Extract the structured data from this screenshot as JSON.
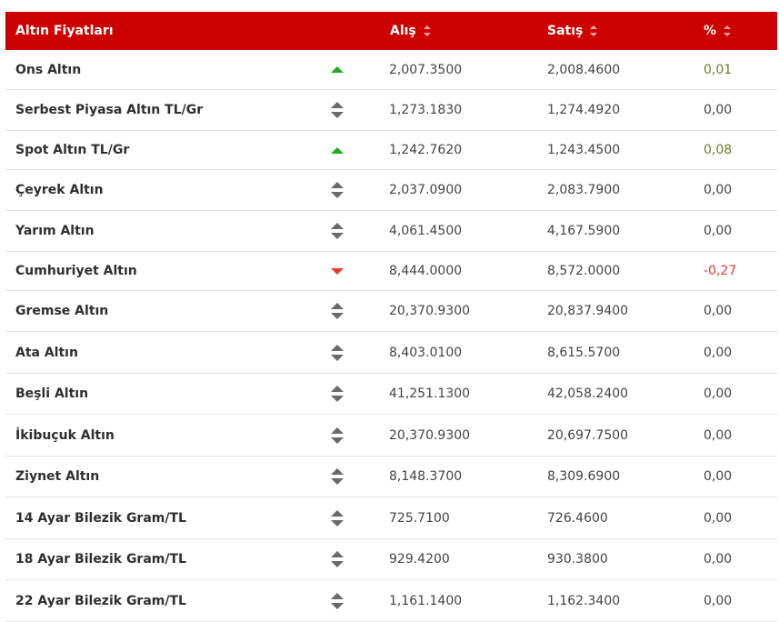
{
  "header": {
    "title": "Altın Fiyatları",
    "buy_label": "Alış",
    "sell_label": "Satış",
    "pct_label": "%"
  },
  "colors": {
    "accent": "#cc0000",
    "up": "#1fae1f",
    "down": "#e53935"
  },
  "rows": [
    {
      "name": "Ons Altın",
      "trend": "up",
      "buy": "2,007.3500",
      "sell": "2,008.4600",
      "pct": "0,01"
    },
    {
      "name": "Serbest Piyasa Altın TL/Gr",
      "trend": "flat",
      "buy": "1,273.1830",
      "sell": "1,274.4920",
      "pct": "0,00"
    },
    {
      "name": "Spot Altın TL/Gr",
      "trend": "up",
      "buy": "1,242.7620",
      "sell": "1,243.4500",
      "pct": "0,08"
    },
    {
      "name": "Çeyrek Altın",
      "trend": "flat",
      "buy": "2,037.0900",
      "sell": "2,083.7900",
      "pct": "0,00"
    },
    {
      "name": "Yarım Altın",
      "trend": "flat",
      "buy": "4,061.4500",
      "sell": "4,167.5900",
      "pct": "0,00"
    },
    {
      "name": "Cumhuriyet Altın",
      "trend": "down",
      "buy": "8,444.0000",
      "sell": "8,572.0000",
      "pct": "-0,27"
    },
    {
      "name": "Gremse Altın",
      "trend": "flat",
      "buy": "20,370.9300",
      "sell": "20,837.9400",
      "pct": "0,00"
    },
    {
      "name": "Ata Altın",
      "trend": "flat",
      "buy": "8,403.0100",
      "sell": "8,615.5700",
      "pct": "0,00"
    },
    {
      "name": "Beşli Altın",
      "trend": "flat",
      "buy": "41,251.1300",
      "sell": "42,058.2400",
      "pct": "0,00"
    },
    {
      "name": "İkibuçuk Altın",
      "trend": "flat",
      "buy": "20,370.9300",
      "sell": "20,697.7500",
      "pct": "0,00"
    },
    {
      "name": "Ziynet Altın",
      "trend": "flat",
      "buy": "8,148.3700",
      "sell": "8,309.6900",
      "pct": "0,00"
    },
    {
      "name": "14 Ayar Bilezik Gram/TL",
      "trend": "flat",
      "buy": "725.7100",
      "sell": "726.4600",
      "pct": "0,00"
    },
    {
      "name": "18 Ayar Bilezik Gram/TL",
      "trend": "flat",
      "buy": "929.4200",
      "sell": "930.3800",
      "pct": "0,00"
    },
    {
      "name": "22 Ayar Bilezik Gram/TL",
      "trend": "flat",
      "buy": "1,161.1400",
      "sell": "1,162.3400",
      "pct": "0,00"
    }
  ]
}
